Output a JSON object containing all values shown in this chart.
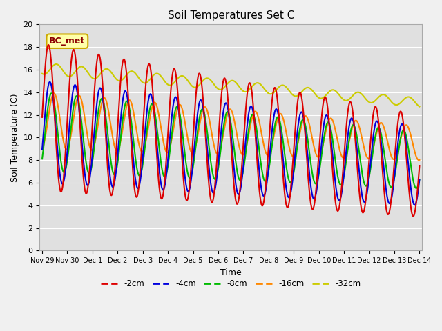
{
  "title": "Soil Temperatures Set C",
  "xlabel": "Time",
  "ylabel": "Soil Temperature (C)",
  "ylim": [
    0,
    20
  ],
  "bg_color": "#f0f0f0",
  "plot_bg": "#e0e0e0",
  "annotation_text": "BC_met",
  "annotation_bg": "#ffffaa",
  "annotation_border": "#ccaa00",
  "line_colors": {
    "-2cm": "#dd0000",
    "-4cm": "#0000dd",
    "-8cm": "#00bb00",
    "-16cm": "#ff8800",
    "-32cm": "#cccc00"
  },
  "legend_colors": [
    "#dd0000",
    "#0000dd",
    "#00bb00",
    "#ff8800",
    "#cccc00"
  ],
  "legend_labels": [
    "-2cm",
    "-4cm",
    "-8cm",
    "-16cm",
    "-32cm"
  ],
  "tick_labels": [
    "Nov 29",
    "Nov 30",
    "Dec 1",
    "Dec 2",
    "Dec 3",
    "Dec 4",
    "Dec 5",
    "Dec 6",
    "Dec 7",
    "Dec 8",
    "Dec 9",
    "Dec 10",
    "Dec 11",
    "Dec 12",
    "Dec 13",
    "Dec 14"
  ],
  "tick_positions": [
    0,
    1,
    2,
    3,
    4,
    5,
    6,
    7,
    8,
    9,
    10,
    11,
    12,
    13,
    14,
    15
  ]
}
